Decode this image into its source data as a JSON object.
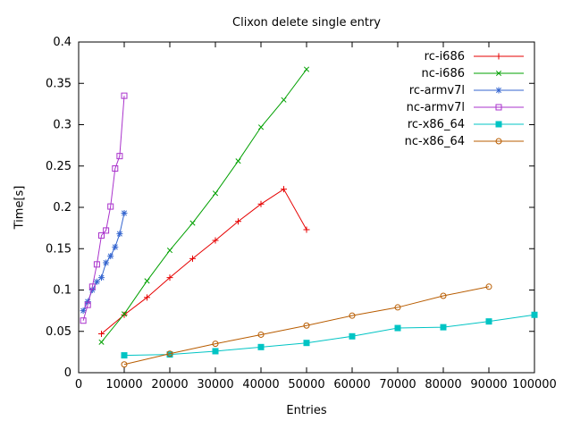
{
  "chart_data": {
    "type": "line",
    "title": "Clixon delete single entry",
    "xlabel": "Entries",
    "ylabel": "Time[s]",
    "xlim": [
      0,
      100000
    ],
    "ylim": [
      0,
      0.4
    ],
    "xticks": [
      0,
      10000,
      20000,
      30000,
      40000,
      50000,
      60000,
      70000,
      80000,
      90000,
      100000
    ],
    "xtick_labels": [
      "0",
      "10000",
      "20000",
      "30000",
      "40000",
      "50000",
      "60000",
      "70000",
      "80000",
      "90000",
      "100000"
    ],
    "yticks": [
      0,
      0.05,
      0.1,
      0.15,
      0.2,
      0.25,
      0.3,
      0.35,
      0.4
    ],
    "ytick_labels": [
      "0",
      "0.05",
      "0.1",
      "0.15",
      "0.2",
      "0.25",
      "0.3",
      "0.35",
      "0.4"
    ],
    "grid": false,
    "legend_position": "top-right-inside",
    "series": [
      {
        "name": "rc-i686",
        "color": "#e60000",
        "marker": "plus",
        "x": [
          5000,
          10000,
          15000,
          20000,
          25000,
          30000,
          35000,
          40000,
          45000,
          50000
        ],
        "y": [
          0.047,
          0.07,
          0.091,
          0.115,
          0.138,
          0.16,
          0.183,
          0.204,
          0.222,
          0.173
        ]
      },
      {
        "name": "nc-i686",
        "color": "#00a000",
        "marker": "cross",
        "x": [
          5000,
          10000,
          15000,
          20000,
          25000,
          30000,
          35000,
          40000,
          45000,
          50000
        ],
        "y": [
          0.037,
          0.071,
          0.111,
          0.148,
          0.181,
          0.217,
          0.256,
          0.297,
          0.33,
          0.367
        ]
      },
      {
        "name": "rc-armv7l",
        "color": "#3465cf",
        "marker": "asterisk",
        "x": [
          1000,
          2000,
          3000,
          4000,
          5000,
          6000,
          7000,
          8000,
          9000,
          10000
        ],
        "y": [
          0.075,
          0.086,
          0.1,
          0.11,
          0.115,
          0.133,
          0.141,
          0.152,
          0.168,
          0.193
        ]
      },
      {
        "name": "nc-armv7l",
        "color": "#aa33cc",
        "marker": "square-open",
        "x": [
          1000,
          2000,
          3000,
          4000,
          5000,
          6000,
          7000,
          8000,
          9000,
          10000
        ],
        "y": [
          0.063,
          0.082,
          0.104,
          0.131,
          0.166,
          0.172,
          0.201,
          0.247,
          0.262,
          0.335
        ]
      },
      {
        "name": "rc-x86_64",
        "color": "#00c4c4",
        "marker": "square-filled",
        "x": [
          10000,
          20000,
          30000,
          40000,
          50000,
          60000,
          70000,
          80000,
          90000,
          100000
        ],
        "y": [
          0.021,
          0.022,
          0.026,
          0.031,
          0.036,
          0.044,
          0.054,
          0.055,
          0.062,
          0.07
        ]
      },
      {
        "name": "nc-x86_64",
        "color": "#b85c00",
        "marker": "circle-open",
        "x": [
          10000,
          20000,
          30000,
          40000,
          50000,
          60000,
          70000,
          80000,
          90000
        ],
        "y": [
          0.01,
          0.023,
          0.035,
          0.046,
          0.057,
          0.069,
          0.079,
          0.093,
          0.104
        ]
      }
    ]
  }
}
